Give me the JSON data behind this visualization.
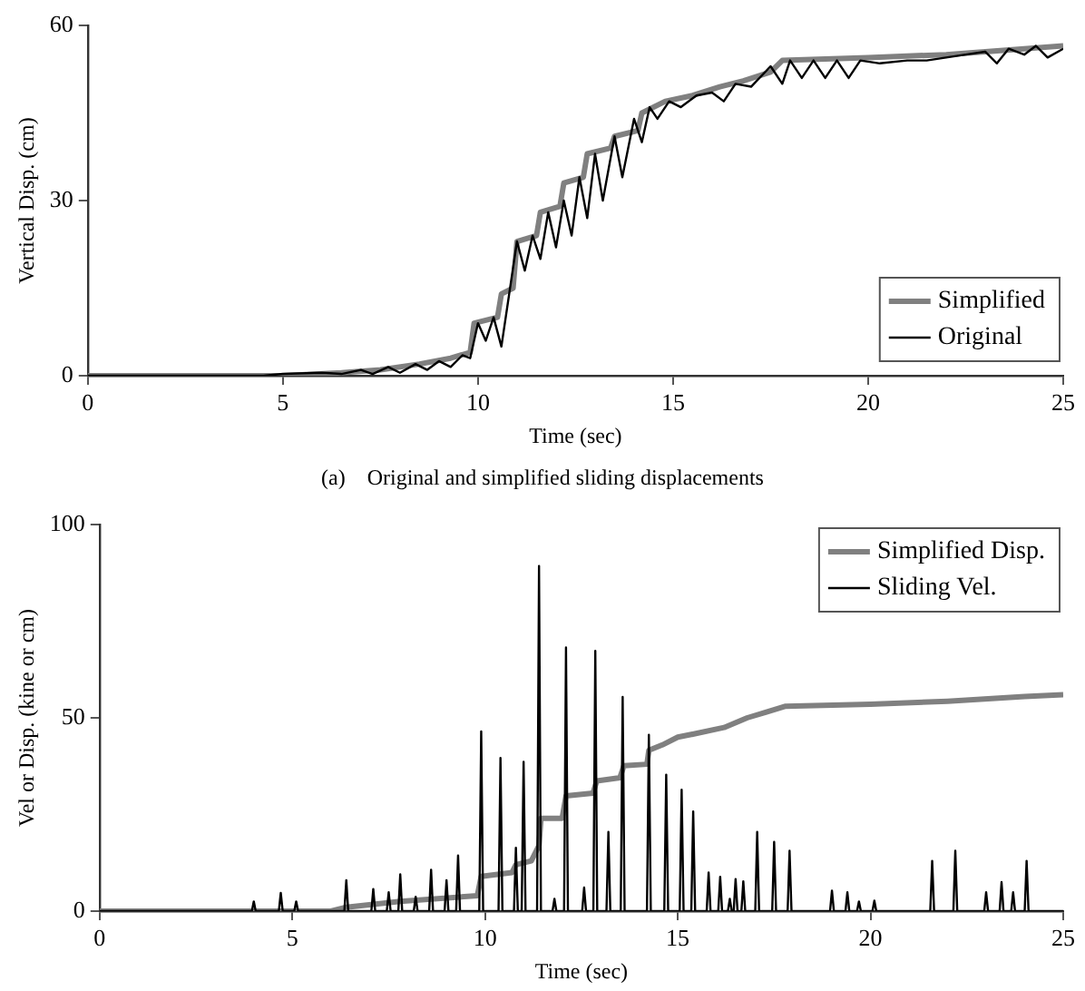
{
  "chart_data": [
    {
      "type": "line",
      "xlabel": "Time (sec)",
      "ylabel": "Vertical Disp. (cm)",
      "xlim": [
        0,
        25
      ],
      "xticks": [
        0,
        5,
        10,
        15,
        20,
        25
      ],
      "ylim": [
        0,
        60
      ],
      "yticks": [
        0,
        30,
        60
      ],
      "grid": false,
      "legend": "bottom right",
      "marker": "none",
      "line_style": "solid",
      "annotations": [
        "(a)    Original and simplified sliding displacements"
      ],
      "series": [
        {
          "name": "Simplified",
          "color": "#808080",
          "x": [
            0,
            5,
            6.5,
            7.5,
            8.5,
            9.3,
            9.8,
            9.9,
            10.5,
            10.6,
            10.9,
            11.0,
            11.5,
            11.6,
            12.1,
            12.2,
            12.7,
            12.8,
            13.4,
            13.5,
            14.1,
            14.2,
            14.8,
            15.5,
            16.2,
            16.8,
            17.5,
            17.8,
            20,
            22,
            24,
            25
          ],
          "values": [
            0,
            0,
            0.5,
            1,
            2,
            3,
            4,
            9,
            10,
            14,
            15,
            23,
            24,
            28,
            29,
            33,
            34,
            38,
            39,
            41,
            42,
            45,
            47,
            48,
            49.5,
            50.5,
            52,
            54,
            54.5,
            55,
            56,
            56.5
          ]
        },
        {
          "name": "Original",
          "color": "#000000",
          "x": [
            0,
            4.5,
            5,
            6,
            6.5,
            7,
            7.3,
            7.7,
            8,
            8.4,
            8.7,
            9,
            9.3,
            9.6,
            9.8,
            10,
            10.2,
            10.4,
            10.6,
            10.8,
            11,
            11.2,
            11.4,
            11.6,
            11.8,
            12,
            12.2,
            12.4,
            12.6,
            12.8,
            13,
            13.2,
            13.5,
            13.7,
            14,
            14.2,
            14.4,
            14.6,
            14.9,
            15.2,
            15.6,
            16,
            16.3,
            16.6,
            17,
            17.5,
            17.8,
            18,
            18.3,
            18.6,
            18.9,
            19.2,
            19.5,
            19.8,
            20.3,
            21,
            21.5,
            22,
            22.5,
            23,
            23.3,
            23.6,
            24,
            24.3,
            24.6,
            25
          ],
          "values": [
            0,
            0,
            0.3,
            0.5,
            0.3,
            1,
            0.3,
            1.5,
            0.5,
            2,
            1,
            2.5,
            1.5,
            3.5,
            3,
            9,
            6,
            10,
            5,
            14,
            23,
            18,
            24,
            20,
            28,
            22,
            30,
            24,
            34,
            27,
            38,
            30,
            41,
            34,
            44,
            40,
            46,
            44,
            47,
            46,
            48,
            48.5,
            47,
            50,
            49.5,
            53,
            50,
            54,
            51,
            54,
            51,
            54,
            51,
            54,
            53.5,
            54,
            54,
            54.5,
            55,
            55.5,
            53.5,
            56,
            55,
            56.5,
            54.5,
            56
          ]
        }
      ]
    },
    {
      "type": "line",
      "xlabel": "Time (sec)",
      "ylabel": "Vel or Disp. (kine or cm)",
      "xlim": [
        0,
        25
      ],
      "xticks": [
        0,
        5,
        10,
        15,
        20,
        25
      ],
      "ylim": [
        0,
        100
      ],
      "yticks": [
        0,
        50,
        100
      ],
      "grid": false,
      "legend": "top right",
      "marker": "none",
      "line_style": "solid",
      "series": [
        {
          "name": "Simplified Disp.",
          "color": "#808080",
          "x": [
            0,
            6,
            6.4,
            7.8,
            9.8,
            9.9,
            10.7,
            10.8,
            11.2,
            11.4,
            11.45,
            12.0,
            12.1,
            12.8,
            12.9,
            13.5,
            13.6,
            14.2,
            14.25,
            14.6,
            15,
            15.5,
            16.2,
            16.8,
            17.3,
            17.8,
            20,
            22,
            24,
            25
          ],
          "values": [
            0,
            0,
            1,
            2.5,
            4,
            9,
            10,
            12,
            13,
            17,
            24,
            24,
            29.8,
            30.5,
            33.7,
            34.5,
            37.6,
            38,
            41.6,
            43,
            45,
            46,
            47.5,
            50,
            51.5,
            53,
            53.5,
            54.3,
            55.5,
            56
          ]
        },
        {
          "name": "Sliding Vel.",
          "color": "#000000",
          "x": [
            0,
            3.95,
            4.0,
            4.05,
            4.65,
            4.7,
            4.75,
            5.05,
            5.1,
            5.15,
            6.35,
            6.4,
            6.45,
            7.05,
            7.1,
            7.15,
            7.45,
            7.5,
            7.55,
            7.75,
            7.8,
            7.85,
            8.15,
            8.2,
            8.25,
            8.55,
            8.6,
            8.65,
            8.95,
            9.0,
            9.05,
            9.25,
            9.3,
            9.35,
            9.85,
            9.9,
            9.95,
            10.35,
            10.4,
            10.45,
            10.75,
            10.8,
            10.85,
            10.95,
            11.0,
            11.05,
            11.35,
            11.4,
            11.45,
            11.75,
            11.8,
            11.85,
            12.05,
            12.1,
            12.15,
            12.52,
            12.57,
            12.62,
            12.81,
            12.86,
            12.91,
            13.15,
            13.2,
            13.25,
            13.52,
            13.57,
            13.62,
            14.2,
            14.25,
            14.3,
            14.65,
            14.7,
            14.75,
            15.05,
            15.1,
            15.15,
            15.35,
            15.4,
            15.45,
            15.75,
            15.8,
            15.85,
            16.05,
            16.1,
            16.15,
            16.3,
            16.35,
            16.4,
            16.45,
            16.5,
            16.55,
            16.65,
            16.7,
            16.75,
            17.01,
            17.06,
            17.11,
            17.45,
            17.5,
            17.55,
            17.85,
            17.9,
            17.95,
            18.95,
            19.0,
            19.05,
            19.35,
            19.4,
            19.45,
            19.65,
            19.7,
            19.75,
            20.05,
            20.1,
            20.15,
            21.55,
            21.6,
            21.65,
            22.15,
            22.2,
            22.25,
            22.95,
            23.0,
            23.05,
            23.35,
            23.4,
            23.45,
            23.65,
            23.7,
            23.75,
            24.0,
            24.05,
            24.1,
            25
          ],
          "values": [
            0,
            0,
            2.5,
            0,
            0,
            4.7,
            0,
            0,
            2.5,
            0,
            0,
            8,
            0,
            0,
            5.7,
            0,
            0,
            4.9,
            0,
            0,
            9.5,
            0,
            0,
            3.7,
            0,
            0,
            10.7,
            0,
            0,
            8,
            0,
            0,
            14.4,
            0,
            0,
            46.5,
            0,
            0,
            39.6,
            0,
            0,
            16.4,
            0,
            0,
            38.6,
            0,
            0,
            89.3,
            0,
            0,
            3.2,
            0,
            0,
            68.2,
            0,
            0,
            6.1,
            0,
            0,
            67.3,
            0,
            0,
            20.5,
            0,
            0,
            55.4,
            0,
            0,
            45.6,
            0,
            0,
            35.3,
            0,
            0,
            31.4,
            0,
            0,
            25.8,
            0,
            0,
            10,
            0,
            0,
            8.9,
            0,
            0,
            3.2,
            0,
            0,
            8.3,
            0,
            0,
            7.7,
            0,
            0,
            20.5,
            0,
            0,
            17.9,
            0,
            0,
            15.6,
            0,
            0,
            5.3,
            0,
            0,
            4.9,
            0,
            0,
            2.5,
            0,
            0,
            2.7,
            0,
            0,
            13,
            0,
            0,
            15.6,
            0,
            0,
            4.9,
            0,
            0,
            7.5,
            0,
            0,
            4.9,
            0,
            0,
            13,
            0,
            0
          ]
        }
      ]
    }
  ]
}
